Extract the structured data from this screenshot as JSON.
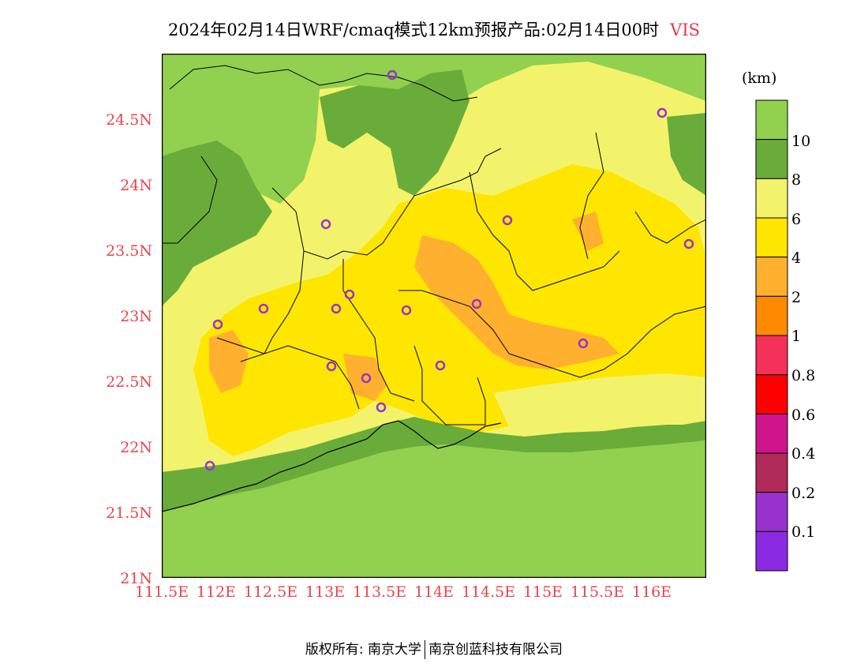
{
  "title": {
    "main": "2024年02月14日WRF/cmaq模式12km预报产品:02月14日00时",
    "variable": "VIS"
  },
  "axes": {
    "y_ticks": [
      "24.5N",
      "24N",
      "23.5N",
      "23N",
      "22.5N",
      "22N",
      "21.5N",
      "21N"
    ],
    "x_ticks": [
      "111.5E",
      "112E",
      "112.5E",
      "113E",
      "113.5E",
      "114E",
      "114.5E",
      "115E",
      "115.5E",
      "116E"
    ]
  },
  "colorbar": {
    "unit": "(km)",
    "labels": [
      "10",
      "8",
      "6",
      "4",
      "2",
      "1",
      "0.8",
      "0.6",
      "0.4",
      "0.2",
      "0.1"
    ],
    "colors": [
      "#92d050",
      "#6aac3a",
      "#f3f36b",
      "#ffe600",
      "#ffb02e",
      "#ff8a00",
      "#f5305a",
      "#ff0000",
      "#d0148c",
      "#b02a5a",
      "#9932cc",
      "#8a2be2"
    ]
  },
  "map_colors": {
    "ocean": "#92d050",
    "dark_green": "#6aac3a",
    "light_yellow": "#f3f36b",
    "yellow": "#ffe600",
    "orange": "#ffb02e",
    "station": "#9933cc"
  },
  "footer": {
    "left": "版权所有: 南京大学",
    "right": "南京创蓝科技有限公司"
  }
}
